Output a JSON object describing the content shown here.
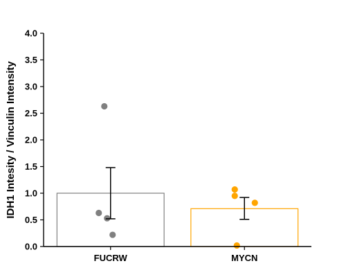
{
  "chart_data": {
    "type": "bar",
    "ylabel": "IDH1 Intesity / Vinculin Intensity",
    "xlabel": "",
    "ylim": [
      0,
      4
    ],
    "yticks": [
      "0.0",
      "0.5",
      "1.0",
      "1.5",
      "2.0",
      "2.5",
      "3.0",
      "3.5",
      "4.0"
    ],
    "categories": [
      "FUCRW",
      "MYCN"
    ],
    "bars": [
      {
        "category": "FUCRW",
        "mean": 1.0,
        "error_low": 0.52,
        "error_high": 1.48,
        "edge_color": "#808080",
        "point_color": "#808080",
        "points": [
          2.63,
          0.63,
          0.53,
          0.22
        ]
      },
      {
        "category": "MYCN",
        "mean": 0.71,
        "error_low": 0.51,
        "error_high": 0.92,
        "edge_color": "#FFA500",
        "point_color": "#FFA500",
        "points": [
          1.07,
          0.95,
          0.82,
          0.02
        ]
      }
    ],
    "grid": false,
    "legend": "none"
  }
}
